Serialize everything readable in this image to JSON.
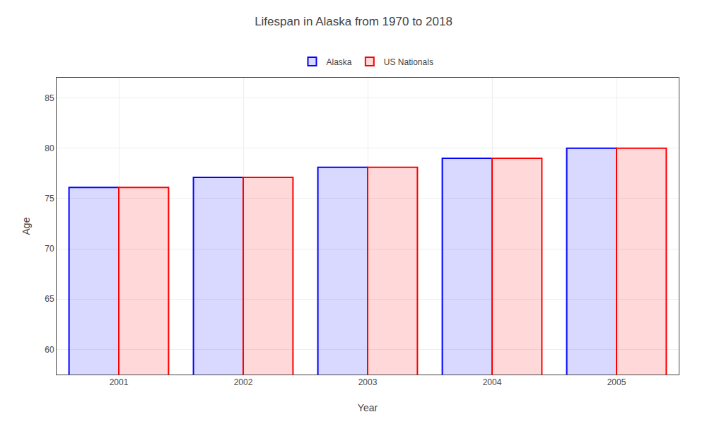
{
  "chart_data": {
    "type": "bar",
    "title": "Lifespan in Alaska from 1970 to 2018",
    "xlabel": "Year",
    "ylabel": "Age",
    "categories": [
      "2001",
      "2002",
      "2003",
      "2004",
      "2005"
    ],
    "series": [
      {
        "name": "Alaska",
        "color": "#0000ff",
        "values": [
          76.1,
          77.1,
          78.1,
          79.0,
          80.0
        ]
      },
      {
        "name": "US Nationals",
        "color": "#ff0000",
        "values": [
          76.1,
          77.1,
          78.1,
          79.0,
          80.0
        ]
      }
    ],
    "ylim": [
      57.5,
      87
    ],
    "yticks": [
      60,
      65,
      70,
      75,
      80,
      85
    ],
    "grid": true,
    "legend": "top"
  }
}
